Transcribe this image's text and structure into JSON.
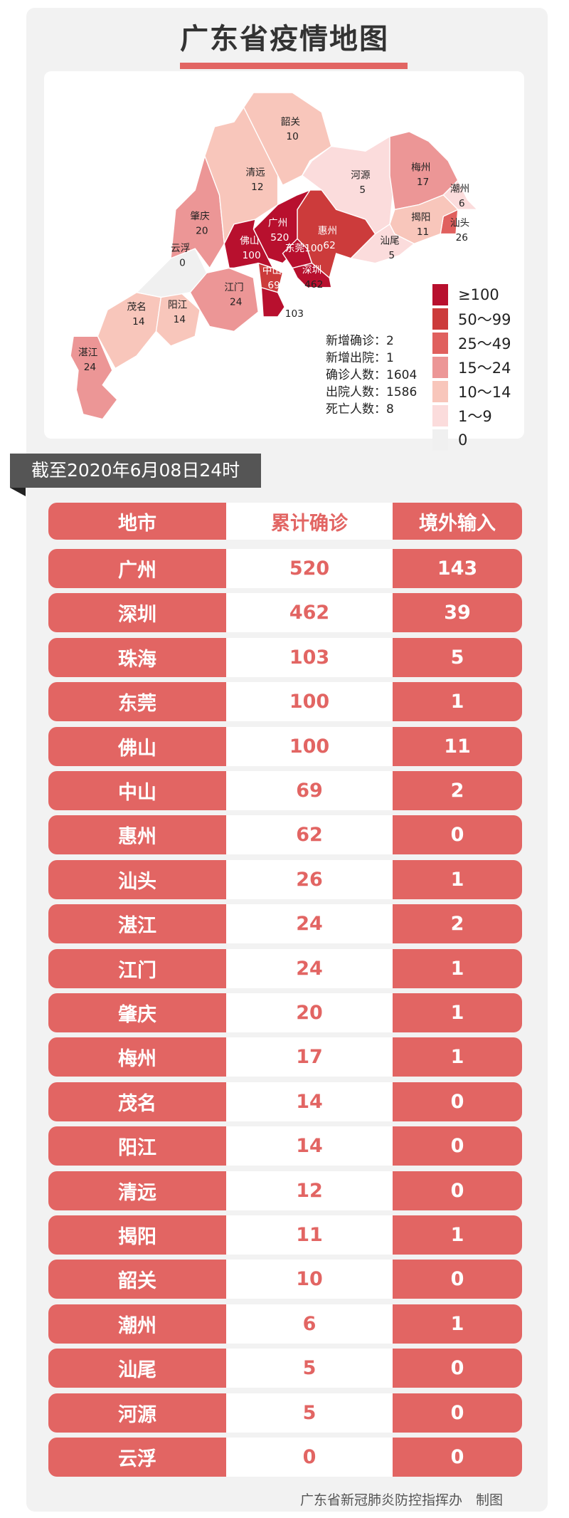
{
  "title": "广东省疫情地图",
  "colors": {
    "accent": "#e26563",
    "ge100": "#b8102e",
    "r50_99": "#cc3b3b",
    "r25_49": "#e0605e",
    "r15_24": "#ec9696",
    "r10_14": "#f8c6bb",
    "r1_9": "#fbdcdc",
    "r0": "#f0f0f0"
  },
  "map": {
    "cities": [
      {
        "name": "湛江",
        "value": "24"
      },
      {
        "name": "茂名",
        "value": "14"
      },
      {
        "name": "阳江",
        "value": "14"
      },
      {
        "name": "云浮",
        "value": "0"
      },
      {
        "name": "肇庆",
        "value": "20"
      },
      {
        "name": "江门",
        "value": "24"
      },
      {
        "name": "清远",
        "value": "12"
      },
      {
        "name": "韶关",
        "value": "10"
      },
      {
        "name": "河源",
        "value": "5"
      },
      {
        "name": "梅州",
        "value": "17"
      },
      {
        "name": "潮州",
        "value": "6"
      },
      {
        "name": "汕头",
        "value": "26"
      },
      {
        "name": "揭阳",
        "value": "11"
      },
      {
        "name": "汕尾",
        "value": "5"
      },
      {
        "name": "惠州",
        "value": "62"
      },
      {
        "name": "广州",
        "value": "520"
      },
      {
        "name": "东莞",
        "value": "100"
      },
      {
        "name": "深圳",
        "value": "462"
      },
      {
        "name": "佛山",
        "value": "100"
      },
      {
        "name": "中山",
        "value": "69"
      },
      {
        "name": "珠海",
        "value": "103"
      }
    ],
    "stats": [
      "新增确诊：2",
      "新增出院：1",
      "确诊人数：1604",
      "出院人数：1586",
      "死亡人数：8"
    ],
    "legend": [
      "≥100",
      "50～99",
      "25～49",
      "15～24",
      "10～14",
      "1～9",
      "0"
    ]
  },
  "date_banner": "截至2020年6月08日24时",
  "table": {
    "headers": [
      "地市",
      "累计确诊",
      "境外输入"
    ],
    "rows": [
      [
        "广州",
        "520",
        "143"
      ],
      [
        "深圳",
        "462",
        "39"
      ],
      [
        "珠海",
        "103",
        "5"
      ],
      [
        "东莞",
        "100",
        "1"
      ],
      [
        "佛山",
        "100",
        "11"
      ],
      [
        "中山",
        "69",
        "2"
      ],
      [
        "惠州",
        "62",
        "0"
      ],
      [
        "汕头",
        "26",
        "1"
      ],
      [
        "湛江",
        "24",
        "2"
      ],
      [
        "江门",
        "24",
        "1"
      ],
      [
        "肇庆",
        "20",
        "1"
      ],
      [
        "梅州",
        "17",
        "1"
      ],
      [
        "茂名",
        "14",
        "0"
      ],
      [
        "阳江",
        "14",
        "0"
      ],
      [
        "清远",
        "12",
        "0"
      ],
      [
        "揭阳",
        "11",
        "1"
      ],
      [
        "韶关",
        "10",
        "0"
      ],
      [
        "潮州",
        "6",
        "1"
      ],
      [
        "汕尾",
        "5",
        "0"
      ],
      [
        "河源",
        "5",
        "0"
      ],
      [
        "云浮",
        "0",
        "0"
      ]
    ]
  },
  "footer": "广东省新冠肺炎防控指挥办　制图"
}
